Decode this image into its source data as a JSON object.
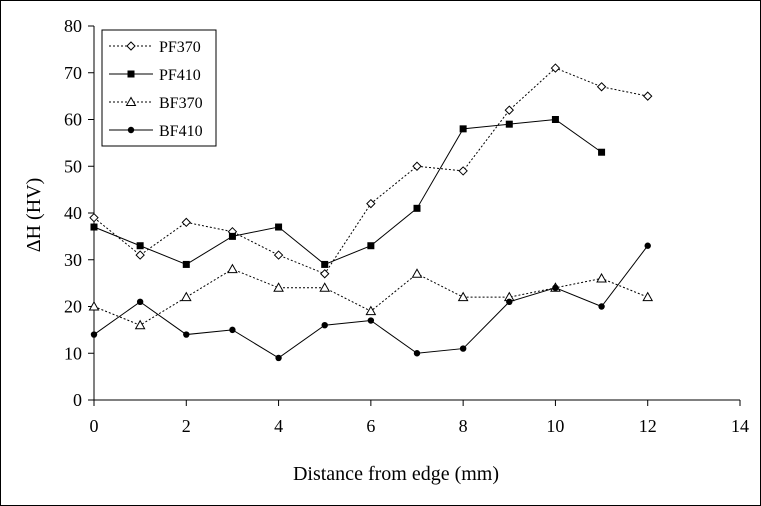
{
  "chart_data": {
    "type": "line",
    "title": "",
    "xlabel": "Distance from edge (mm)",
    "ylabel": "ΔH (HV)",
    "xlim": [
      0,
      14
    ],
    "ylim": [
      0,
      80
    ],
    "xticks": [
      0,
      2,
      4,
      6,
      8,
      10,
      12,
      14
    ],
    "yticks": [
      0,
      10,
      20,
      30,
      40,
      50,
      60,
      70,
      80
    ],
    "grid": false,
    "legend_position": "top-left",
    "series": [
      {
        "name": "PF370",
        "line": "dotted",
        "marker": "open-diamond",
        "x": [
          0,
          1,
          2,
          3,
          4,
          5,
          6,
          7,
          8,
          9,
          10,
          11,
          12
        ],
        "values": [
          39,
          31,
          38,
          36,
          31,
          27,
          42,
          50,
          49,
          62,
          71,
          67,
          65
        ]
      },
      {
        "name": "PF410",
        "line": "solid",
        "marker": "filled-square",
        "x": [
          0,
          1,
          2,
          3,
          4,
          5,
          6,
          7,
          8,
          9,
          10,
          11
        ],
        "values": [
          37,
          33,
          29,
          35,
          37,
          29,
          33,
          41,
          58,
          59,
          60,
          53
        ]
      },
      {
        "name": "BF370",
        "line": "dotted",
        "marker": "open-triangle",
        "x": [
          0,
          1,
          2,
          3,
          4,
          5,
          6,
          7,
          8,
          9,
          10,
          11,
          12
        ],
        "values": [
          20,
          16,
          22,
          28,
          24,
          24,
          19,
          27,
          22,
          22,
          24,
          26,
          22
        ]
      },
      {
        "name": "BF410",
        "line": "solid",
        "marker": "filled-circle",
        "x": [
          0,
          1,
          2,
          3,
          4,
          5,
          6,
          7,
          8,
          9,
          10,
          11,
          12
        ],
        "values": [
          14,
          21,
          14,
          15,
          9,
          16,
          17,
          10,
          11,
          21,
          24,
          20,
          33
        ]
      }
    ]
  }
}
